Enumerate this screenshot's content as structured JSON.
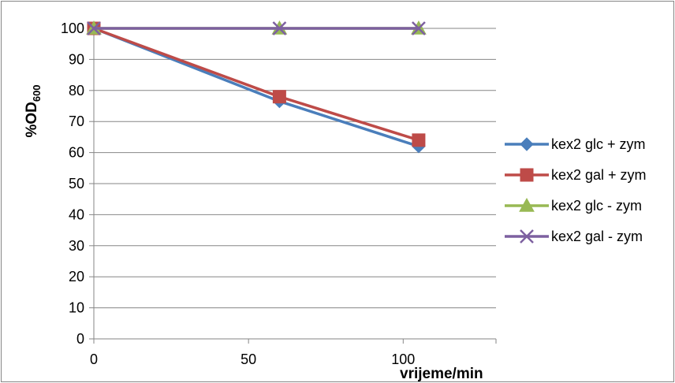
{
  "chart_data": {
    "type": "line",
    "title": "",
    "xlabel": "vrijeme/min",
    "ylabel": "%OD",
    "ylabel_subscript": "600",
    "xlim": [
      0,
      130
    ],
    "ylim": [
      0,
      100
    ],
    "x_ticks": [
      "0",
      "50",
      "100"
    ],
    "x_tick_values": [
      0,
      50,
      100
    ],
    "y_ticks": [
      "0",
      "10",
      "20",
      "30",
      "40",
      "50",
      "60",
      "70",
      "80",
      "90",
      "100"
    ],
    "y_tick_values": [
      0,
      10,
      20,
      30,
      40,
      50,
      60,
      70,
      80,
      90,
      100
    ],
    "grid": "horizontal",
    "legend_position": "right",
    "series": [
      {
        "name": "kex2 glc + zym",
        "color": "#4A7EBB",
        "marker": "diamond",
        "x": [
          0,
          60,
          105
        ],
        "values": [
          100,
          76.5,
          62
        ]
      },
      {
        "name": "kex2 gal + zym",
        "color": "#BE4B48",
        "marker": "square",
        "x": [
          0,
          60,
          105
        ],
        "values": [
          100,
          78,
          64
        ]
      },
      {
        "name": "kex2 glc - zym",
        "color": "#98B954",
        "marker": "triangle",
        "x": [
          0,
          60,
          105
        ],
        "values": [
          100,
          100,
          100
        ]
      },
      {
        "name": "kex2 gal - zym",
        "color": "#7D60A0",
        "marker": "x",
        "x": [
          0,
          60,
          105
        ],
        "values": [
          100,
          100,
          100
        ]
      }
    ]
  }
}
